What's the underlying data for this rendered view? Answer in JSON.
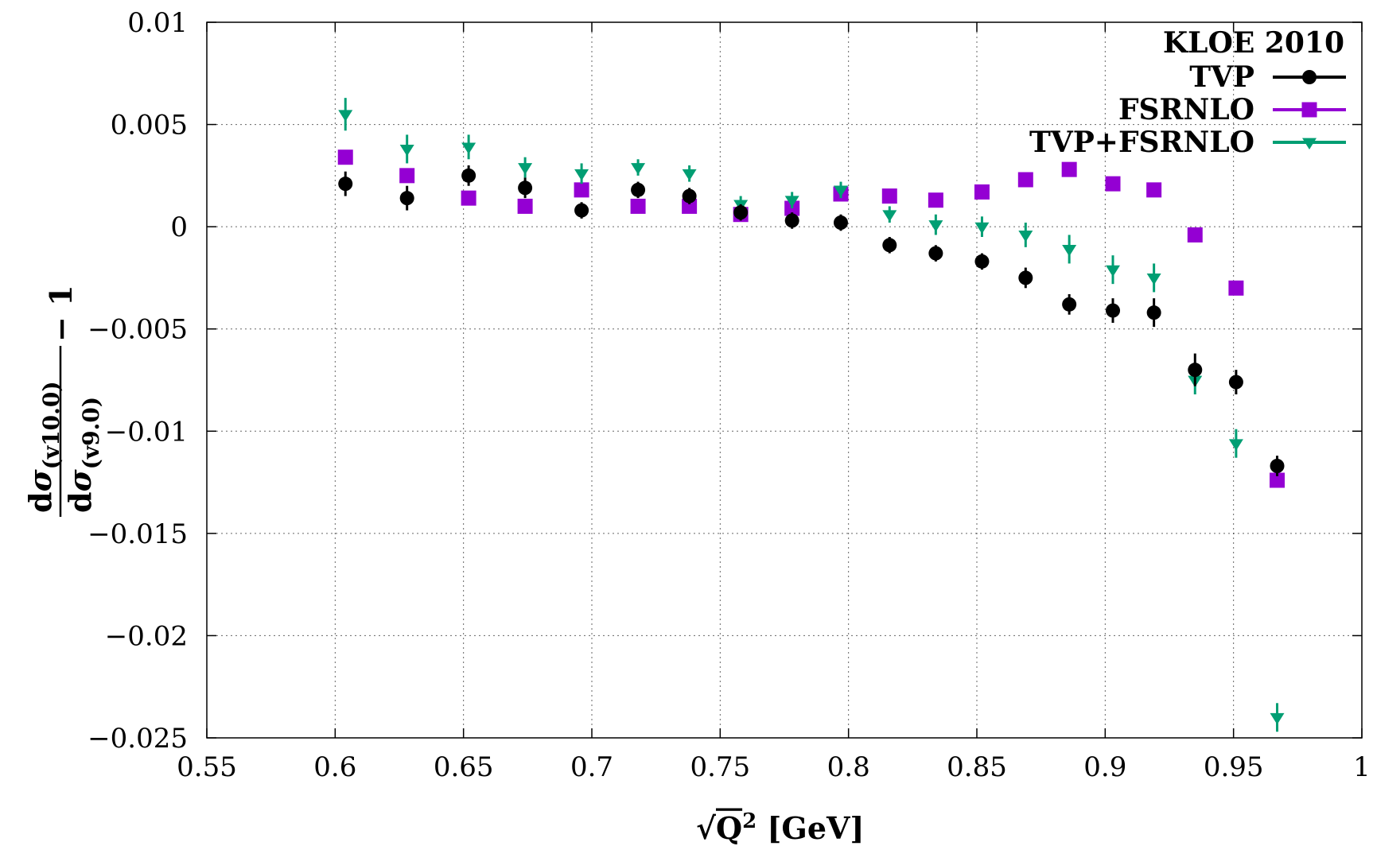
{
  "chart_data": {
    "type": "scatter",
    "title": "",
    "legend_title": "KLOE 2010",
    "legend_position": "top-right",
    "xlabel": {
      "radical": "√",
      "var": "Q",
      "sup": "2",
      "unit": " [GeV]"
    },
    "ylabel": {
      "num_d": "d",
      "num_sigma": "σ",
      "num_sub": "(v10.0)",
      "den_d": "d",
      "den_sigma": "σ",
      "den_sub": "(v9.0)",
      "suffix": "− 1"
    },
    "xlim": [
      0.55,
      1.0
    ],
    "ylim": [
      -0.025,
      0.01
    ],
    "grid": true,
    "x_ticks": [
      {
        "v": 0.55,
        "label": "0.55"
      },
      {
        "v": 0.6,
        "label": "0.6"
      },
      {
        "v": 0.65,
        "label": "0.65"
      },
      {
        "v": 0.7,
        "label": "0.7"
      },
      {
        "v": 0.75,
        "label": "0.75"
      },
      {
        "v": 0.8,
        "label": "0.8"
      },
      {
        "v": 0.85,
        "label": "0.85"
      },
      {
        "v": 0.9,
        "label": "0.9"
      },
      {
        "v": 0.95,
        "label": "0.95"
      },
      {
        "v": 1.0,
        "label": "1"
      }
    ],
    "y_ticks": [
      {
        "v": 0.01,
        "label": "0.01"
      },
      {
        "v": 0.005,
        "label": "0.005"
      },
      {
        "v": 0.0,
        "label": "0"
      },
      {
        "v": -0.005,
        "label": "−0.005"
      },
      {
        "v": -0.01,
        "label": "−0.01"
      },
      {
        "v": -0.015,
        "label": "−0.015"
      },
      {
        "v": -0.02,
        "label": "−0.02"
      },
      {
        "v": -0.025,
        "label": "−0.025"
      }
    ],
    "series": [
      {
        "name": "TVP",
        "marker": "circle",
        "color": "#000000",
        "points": [
          {
            "x": 0.604,
            "y": 0.0021,
            "err": 0.0006
          },
          {
            "x": 0.628,
            "y": 0.0014,
            "err": 0.0006
          },
          {
            "x": 0.652,
            "y": 0.0025,
            "err": 0.0005
          },
          {
            "x": 0.674,
            "y": 0.0019,
            "err": 0.0005
          },
          {
            "x": 0.696,
            "y": 0.0008,
            "err": 0.0004
          },
          {
            "x": 0.718,
            "y": 0.0018,
            "err": 0.0004
          },
          {
            "x": 0.738,
            "y": 0.0015,
            "err": 0.0004
          },
          {
            "x": 0.758,
            "y": 0.0007,
            "err": 0.0004
          },
          {
            "x": 0.778,
            "y": 0.0003,
            "err": 0.0004
          },
          {
            "x": 0.797,
            "y": 0.0002,
            "err": 0.0004
          },
          {
            "x": 0.816,
            "y": -0.0009,
            "err": 0.0004
          },
          {
            "x": 0.834,
            "y": -0.0013,
            "err": 0.0004
          },
          {
            "x": 0.852,
            "y": -0.0017,
            "err": 0.0004
          },
          {
            "x": 0.869,
            "y": -0.0025,
            "err": 0.0005
          },
          {
            "x": 0.886,
            "y": -0.0038,
            "err": 0.0005
          },
          {
            "x": 0.903,
            "y": -0.0041,
            "err": 0.0006
          },
          {
            "x": 0.919,
            "y": -0.0042,
            "err": 0.0007
          },
          {
            "x": 0.935,
            "y": -0.007,
            "err": 0.0008
          },
          {
            "x": 0.951,
            "y": -0.0076,
            "err": 0.0006
          },
          {
            "x": 0.967,
            "y": -0.0117,
            "err": 0.0005
          }
        ]
      },
      {
        "name": "FSRNLO",
        "marker": "square",
        "color": "#9400D3",
        "points": [
          {
            "x": 0.604,
            "y": 0.0034
          },
          {
            "x": 0.628,
            "y": 0.0025
          },
          {
            "x": 0.652,
            "y": 0.0014
          },
          {
            "x": 0.674,
            "y": 0.001
          },
          {
            "x": 0.696,
            "y": 0.0018
          },
          {
            "x": 0.718,
            "y": 0.001
          },
          {
            "x": 0.738,
            "y": 0.001
          },
          {
            "x": 0.758,
            "y": 0.0006
          },
          {
            "x": 0.778,
            "y": 0.0009
          },
          {
            "x": 0.797,
            "y": 0.0016
          },
          {
            "x": 0.816,
            "y": 0.0015
          },
          {
            "x": 0.834,
            "y": 0.0013
          },
          {
            "x": 0.852,
            "y": 0.0017
          },
          {
            "x": 0.869,
            "y": 0.0023
          },
          {
            "x": 0.886,
            "y": 0.0028
          },
          {
            "x": 0.903,
            "y": 0.0021
          },
          {
            "x": 0.919,
            "y": 0.0018
          },
          {
            "x": 0.935,
            "y": -0.0004
          },
          {
            "x": 0.951,
            "y": -0.003
          },
          {
            "x": 0.967,
            "y": -0.0124
          }
        ]
      },
      {
        "name": "TVP+FSRNLO",
        "marker": "triangle-down",
        "color": "#009E73",
        "points": [
          {
            "x": 0.604,
            "y": 0.0055,
            "err": 0.0008
          },
          {
            "x": 0.628,
            "y": 0.0038,
            "err": 0.0007
          },
          {
            "x": 0.652,
            "y": 0.0039,
            "err": 0.0006
          },
          {
            "x": 0.674,
            "y": 0.0029,
            "err": 0.0005
          },
          {
            "x": 0.696,
            "y": 0.0026,
            "err": 0.0005
          },
          {
            "x": 0.718,
            "y": 0.0029,
            "err": 0.0004
          },
          {
            "x": 0.738,
            "y": 0.0026,
            "err": 0.0004
          },
          {
            "x": 0.758,
            "y": 0.0011,
            "err": 0.0004
          },
          {
            "x": 0.778,
            "y": 0.0013,
            "err": 0.0004
          },
          {
            "x": 0.797,
            "y": 0.0018,
            "err": 0.0004
          },
          {
            "x": 0.816,
            "y": 0.0006,
            "err": 0.0004
          },
          {
            "x": 0.834,
            "y": 0.0001,
            "err": 0.0005
          },
          {
            "x": 0.852,
            "y": 0.0,
            "err": 0.0005
          },
          {
            "x": 0.869,
            "y": -0.0004,
            "err": 0.0006
          },
          {
            "x": 0.886,
            "y": -0.0011,
            "err": 0.0007
          },
          {
            "x": 0.903,
            "y": -0.0021,
            "err": 0.0007
          },
          {
            "x": 0.919,
            "y": -0.0025,
            "err": 0.0007
          },
          {
            "x": 0.935,
            "y": -0.0075,
            "err": 0.0007
          },
          {
            "x": 0.951,
            "y": -0.0106,
            "err": 0.0007
          },
          {
            "x": 0.967,
            "y": -0.024,
            "err": 0.0007
          }
        ]
      }
    ]
  }
}
